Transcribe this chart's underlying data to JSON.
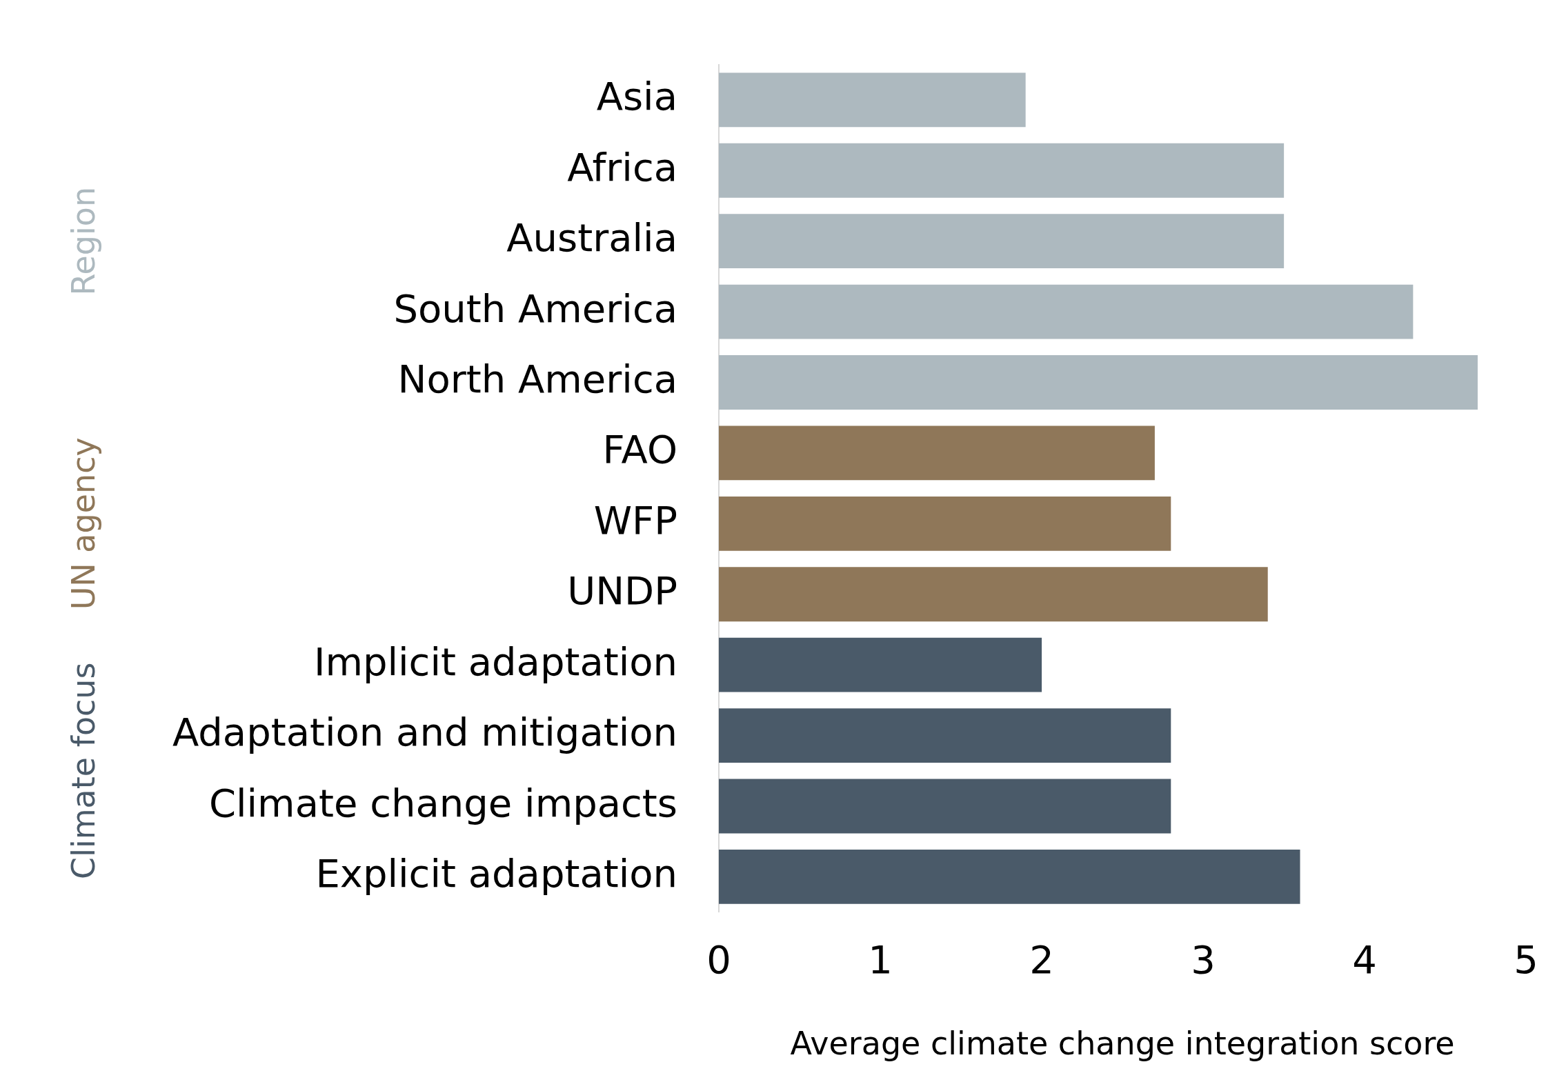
{
  "chart_data": {
    "type": "bar",
    "orientation": "horizontal",
    "xlabel": "Average climate change integration score",
    "categories": [
      "Asia",
      "Africa",
      "Australia",
      "South America",
      "North America",
      "FAO",
      "WFP",
      "UNDP",
      "Implicit adaptation",
      "Adaptation and mitigation",
      "Climate change impacts",
      "Explicit adaptation"
    ],
    "values": [
      1.9,
      3.5,
      3.5,
      4.3,
      4.7,
      2.7,
      2.8,
      3.4,
      2.0,
      2.8,
      2.8,
      3.6
    ],
    "colors": [
      "#adb9bf",
      "#adb9bf",
      "#adb9bf",
      "#adb9bf",
      "#adb9bf",
      "#8f7759",
      "#8f7759",
      "#8f7759",
      "#4a5a69",
      "#4a5a69",
      "#4a5a69",
      "#4a5a69"
    ],
    "annotations": [
      "Region",
      "UN agency",
      "Climate focus"
    ],
    "xlim": [
      0,
      5
    ],
    "xticks": [
      0,
      1,
      2,
      3,
      4,
      5
    ],
    "grid": false,
    "legend": false
  }
}
